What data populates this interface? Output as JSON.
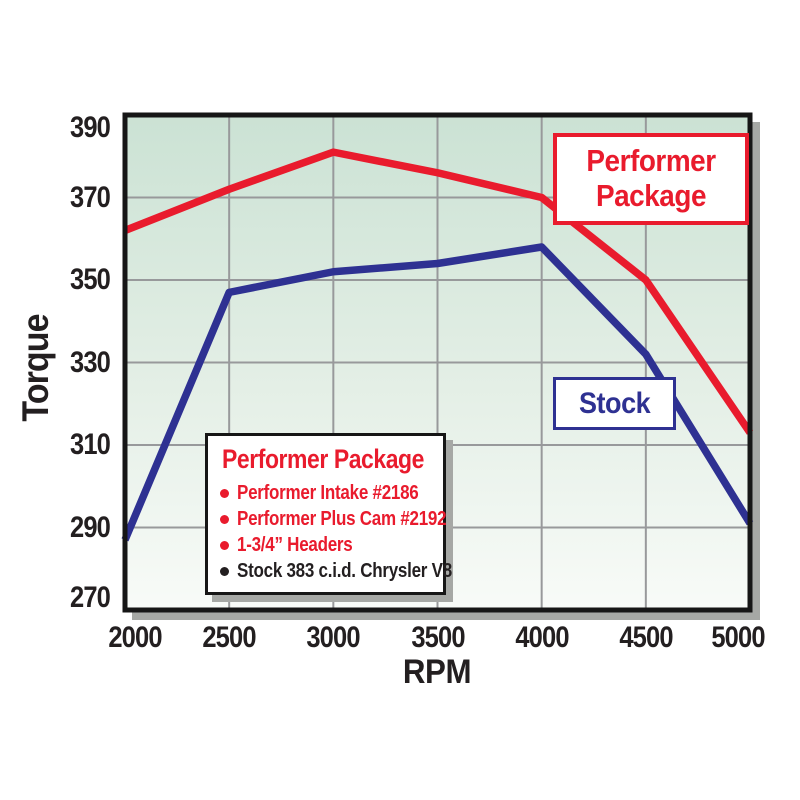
{
  "page": {
    "background": "#ffffff"
  },
  "chart_data": {
    "type": "line",
    "title": "",
    "xlabel": "RPM",
    "ylabel": "Torque",
    "xlim": [
      2000,
      5000
    ],
    "ylim": [
      270,
      390
    ],
    "x_ticks": [
      "2000",
      "2500",
      "3000",
      "3500",
      "4000",
      "4500",
      "5000"
    ],
    "x_tick_values": [
      2000,
      2500,
      3000,
      3500,
      4000,
      4500,
      5000
    ],
    "y_ticks": [
      "390",
      "370",
      "350",
      "330",
      "310",
      "290",
      "270"
    ],
    "y_tick_values": [
      390,
      370,
      350,
      330,
      310,
      290,
      270
    ],
    "grid": true,
    "grid_color": "#98999b",
    "plot_bg_gradient": [
      "#cbe2d4",
      "#e4efe6",
      "#f8fbf8"
    ],
    "x": [
      2000,
      2500,
      3000,
      3500,
      4000,
      4500,
      5000
    ],
    "series": [
      {
        "name": "Performer Package",
        "color": "#e91b2d",
        "values": [
          362,
          372,
          381,
          376,
          370,
          350,
          313
        ]
      },
      {
        "name": "Stock",
        "color": "#2e3192",
        "values": [
          287,
          347,
          352,
          354,
          358,
          332,
          291
        ]
      }
    ],
    "legend_position": "inside-bottom-left"
  },
  "annotations": {
    "performer_label": "Performer Package",
    "stock_label": "Stock"
  },
  "legend": {
    "title": "Performer Package",
    "items": [
      {
        "text": "Performer Intake #2186",
        "color": "#e91b2d"
      },
      {
        "text": "Performer Plus Cam #2192",
        "color": "#e91b2d"
      },
      {
        "text": "1-3/4” Headers",
        "color": "#e91b2d"
      },
      {
        "text": "Stock 383 c.i.d. Chrysler V8",
        "color": "#231f20"
      }
    ]
  },
  "colors": {
    "performer_line": "#e91b2d",
    "stock_line": "#2e3192",
    "axis_frame": "#161616",
    "shadow": "#a6a8a5",
    "text": "#231f20"
  }
}
